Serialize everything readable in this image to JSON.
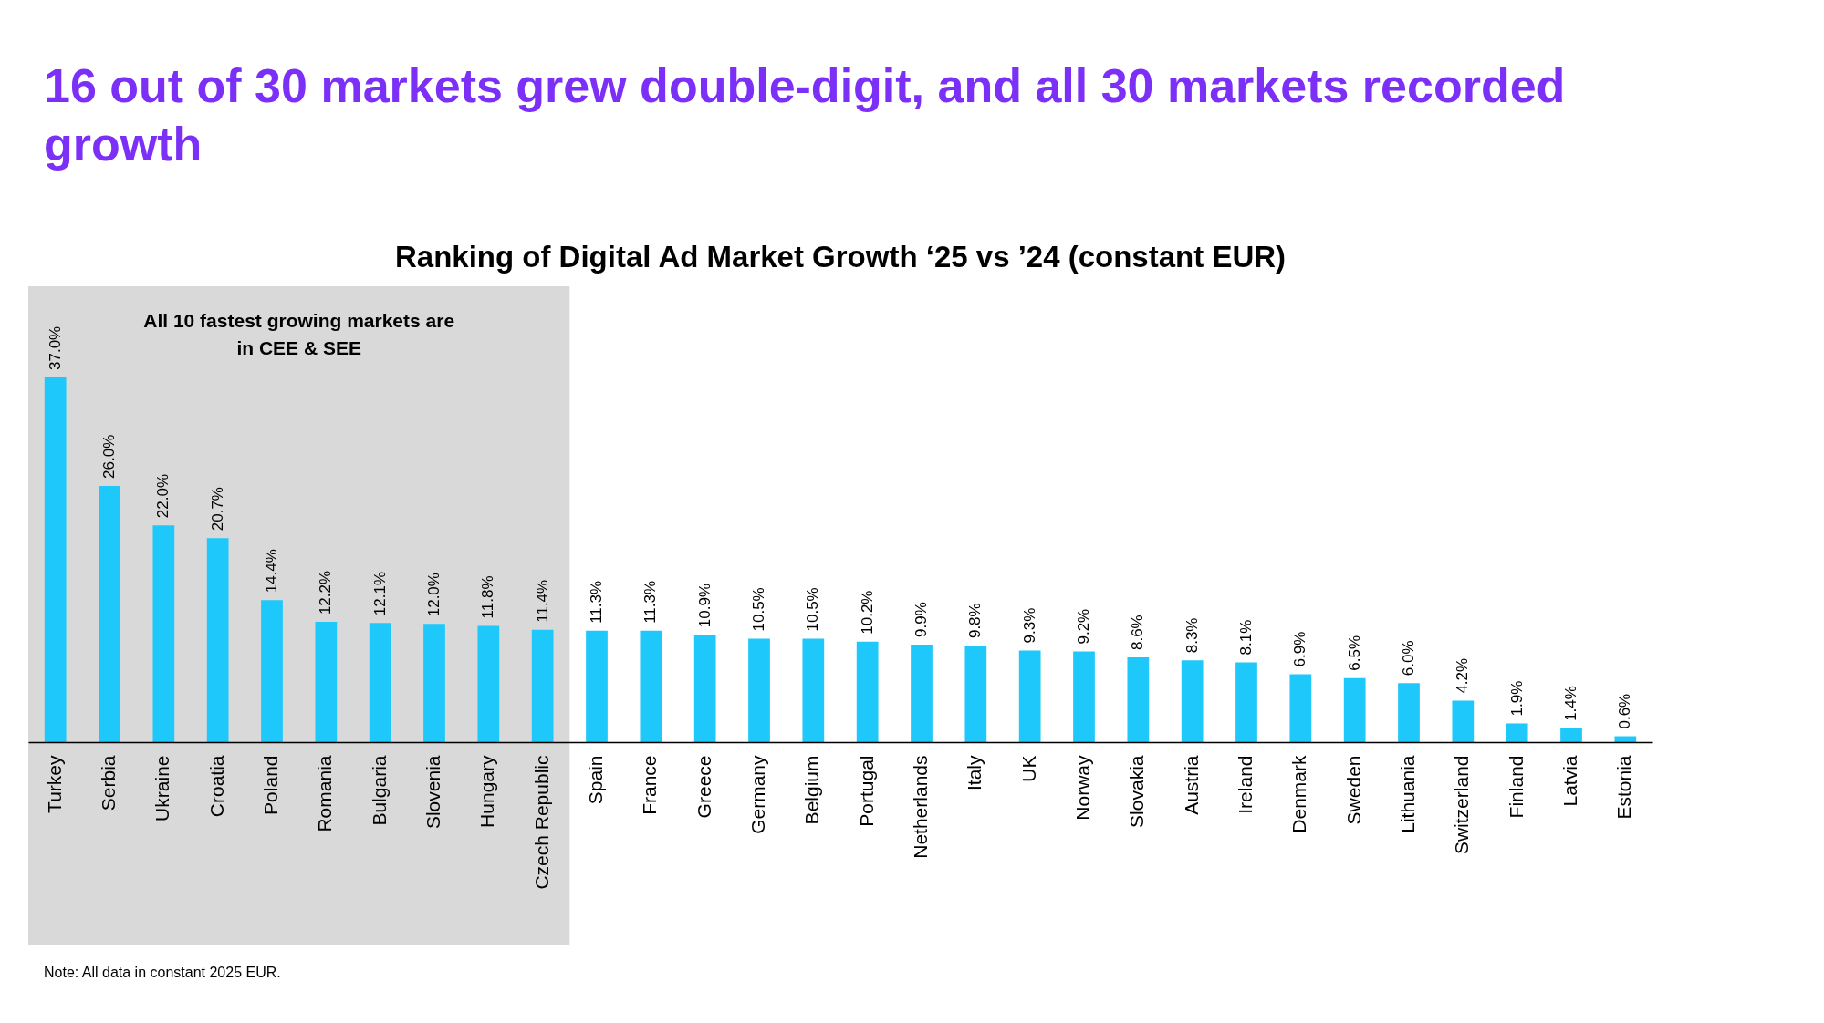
{
  "chart_data": {
    "type": "bar",
    "title": "16 out of 30 markets grew double-digit, and all 30 markets recorded growth",
    "subtitle": "Ranking of Digital Ad Market Growth ‘25 vs ’24 (constant EUR)",
    "categories": [
      "Turkey",
      "Serbia",
      "Ukraine",
      "Croatia",
      "Poland",
      "Romania",
      "Bulgaria",
      "Slovenia",
      "Hungary",
      "Czech Republic",
      "Spain",
      "France",
      "Greece",
      "Germany",
      "Belgium",
      "Portugal",
      "Netherlands",
      "Italy",
      "UK",
      "Norway",
      "Slovakia",
      "Austria",
      "Ireland",
      "Denmark",
      "Sweden",
      "Lithuania",
      "Switzerland",
      "Finland",
      "Latvia",
      "Estonia"
    ],
    "values": [
      37.0,
      26.0,
      22.0,
      20.7,
      14.4,
      12.2,
      12.1,
      12.0,
      11.8,
      11.4,
      11.3,
      11.3,
      10.9,
      10.5,
      10.5,
      10.2,
      9.9,
      9.8,
      9.3,
      9.2,
      8.6,
      8.3,
      8.1,
      6.9,
      6.5,
      6.0,
      4.2,
      1.9,
      1.4,
      0.6
    ],
    "value_labels": [
      "37.0%",
      "26.0%",
      "22.0%",
      "20.7%",
      "14.4%",
      "12.2%",
      "12.1%",
      "12.0%",
      "11.8%",
      "11.4%",
      "11.3%",
      "11.3%",
      "10.9%",
      "10.5%",
      "10.5%",
      "10.2%",
      "9.9%",
      "9.8%",
      "9.3%",
      "9.2%",
      "8.6%",
      "8.3%",
      "8.1%",
      "6.9%",
      "6.5%",
      "6.0%",
      "4.2%",
      "1.9%",
      "1.4%",
      "0.6%"
    ],
    "color": "#1ec8fa",
    "bands": [
      {
        "axis": "x",
        "from": "Turkey",
        "to": "Czech Republic",
        "label": "All 10 fastest growing markets are\nin CEE & SEE",
        "color": "#d9d9d9"
      }
    ],
    "annotations": [
      "Note: All data in constant 2025 EUR."
    ]
  }
}
